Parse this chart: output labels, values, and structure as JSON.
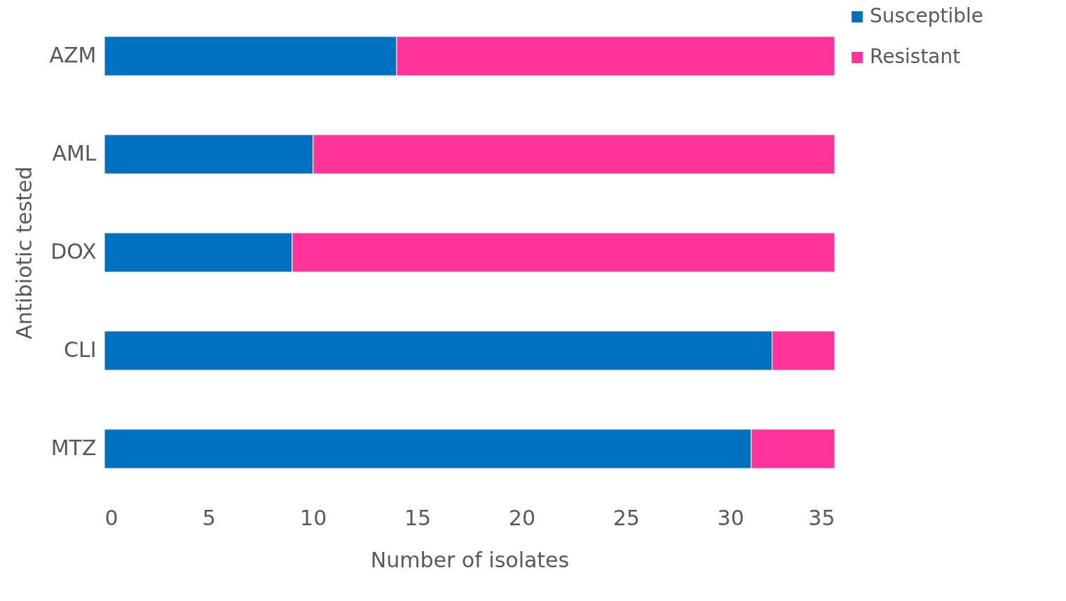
{
  "chart_data": {
    "type": "bar",
    "orientation": "horizontal",
    "stacked": true,
    "xlabel": "Number of isolates",
    "ylabel": "Antibiotic tested",
    "categories": [
      "AZM",
      "AML",
      "DOX",
      "CLI",
      "MTZ"
    ],
    "series": [
      {
        "name": "Susceptible",
        "color": "#0070c0",
        "values": [
          14,
          10,
          9,
          32,
          31
        ]
      },
      {
        "name": "Resistant",
        "color": "#ff3399",
        "values": [
          21,
          25,
          26,
          3,
          4
        ]
      }
    ],
    "xlim": [
      0,
      35
    ],
    "xticks": [
      0,
      5,
      10,
      15,
      20,
      25,
      30,
      35
    ],
    "grid": false,
    "legend": "right"
  }
}
